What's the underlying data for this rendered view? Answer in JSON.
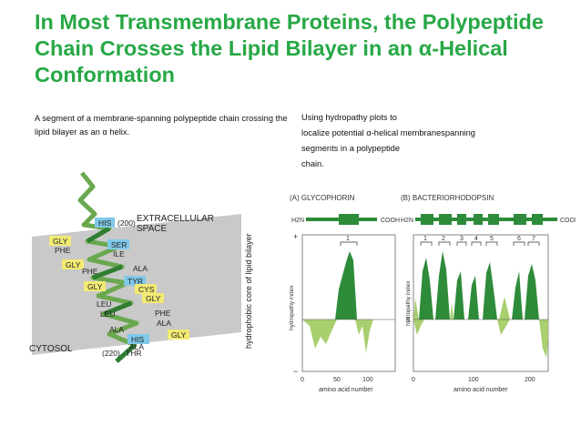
{
  "slide": {
    "title": "In Most Transmembrane Proteins, the Polypeptide Chain Crosses the Lipid Bilayer in an α-Helical Conformation",
    "left_caption": "A segment of a membrane-spanning polypeptide chain crossing the lipid bilayer as an α helix.",
    "right_caption_lines": [
      "Using hydropathy plots to",
      "localize potential α-helical membranespanning",
      "segments in a polypeptide",
      "chain."
    ]
  },
  "helix_figure": {
    "extracellular_label_1": "EXTRACELLULAR",
    "extracellular_label_2": "SPACE",
    "cytosol_label": "CYTOSOL",
    "core_label": "hydrophobic core of lipid bilayer",
    "residues": [
      {
        "name": "HIS",
        "pos": "(200)",
        "color": "blue"
      },
      {
        "name": "GLY",
        "color": "yellow"
      },
      {
        "name": "SER",
        "color": "blue"
      },
      {
        "name": "PHE",
        "color": "white"
      },
      {
        "name": "ILE",
        "color": "white"
      },
      {
        "name": "GLY",
        "color": "yellow"
      },
      {
        "name": "ALA",
        "color": "white"
      },
      {
        "name": "PHE",
        "color": "white"
      },
      {
        "name": "TYR",
        "color": "blue"
      },
      {
        "name": "GLY",
        "color": "yellow"
      },
      {
        "name": "CYS",
        "color": "yellow"
      },
      {
        "name": "GLY",
        "color": "yellow"
      },
      {
        "name": "LEU",
        "color": "white"
      },
      {
        "name": "LEU",
        "color": "white"
      },
      {
        "name": "PHE",
        "color": "white"
      },
      {
        "name": "ALA",
        "color": "white"
      },
      {
        "name": "ALA",
        "color": "white"
      },
      {
        "name": "GLY",
        "color": "yellow"
      },
      {
        "name": "HIS",
        "color": "blue"
      },
      {
        "name": "ALA",
        "color": "white"
      },
      {
        "name": "THR",
        "pos": "(220)",
        "color": "white"
      }
    ]
  },
  "hydropathy": {
    "panel_a_title": "(A) GLYCOPHORIN",
    "panel_b_title": "(B) BACTERIORHODOPSIN",
    "n_term": "H2N",
    "c_term": "COOH",
    "ylabel": "hydropathy index",
    "xlabel": "amino acid number",
    "plus": "+",
    "minus": "−",
    "zero": "0",
    "panel_a_ticks": [
      "0",
      "50",
      "100"
    ],
    "panel_b_ticks": [
      "0",
      "100",
      "200"
    ],
    "panel_a_peak_labels": [
      "1"
    ],
    "panel_b_peak_labels": [
      "1",
      "2",
      "3",
      "4",
      "5",
      "6",
      "7"
    ],
    "colors": {
      "title_green": "#27a845",
      "fill_dark": "#2e8b3a",
      "fill_light": "#a9cf6f",
      "panel_bg": "#ffffff"
    }
  }
}
